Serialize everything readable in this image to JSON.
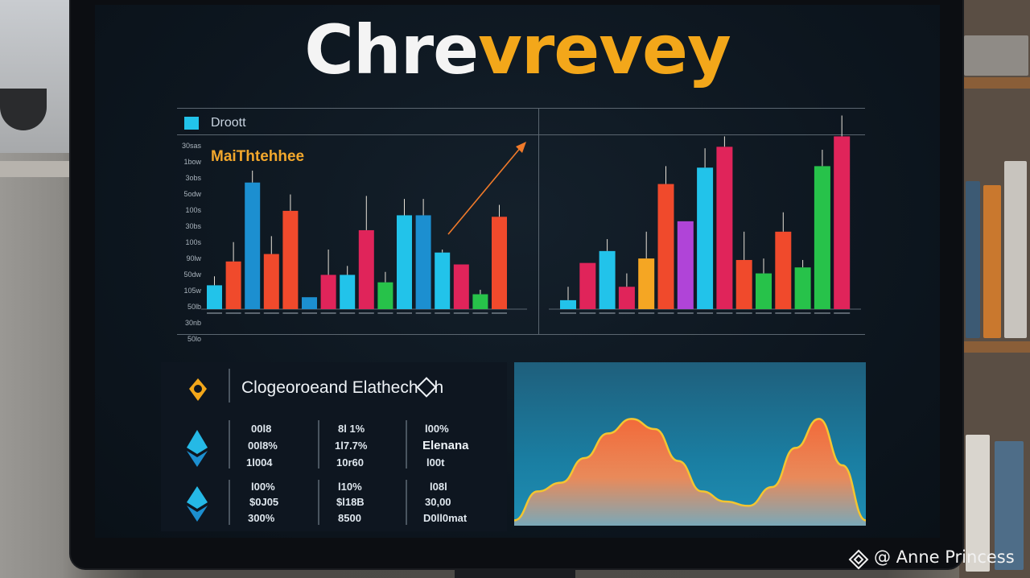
{
  "app": {
    "title_part1": "Chre",
    "title_part2": "vrevey"
  },
  "chart_panel": {
    "legend_label": "Droott",
    "subtitle": "MaiThtehhee",
    "y_ticks": [
      "30sas",
      "1bow",
      "3obs",
      "5odw",
      "100s",
      "30bs",
      "100s",
      "90lw",
      "50dw",
      "105w",
      "50lb",
      "30nb",
      "50lo"
    ]
  },
  "stats_panel": {
    "title": "Clogeoroeand Elathech",
    "title_tail": "h",
    "row1": {
      "col1": [
        "00l8",
        "00l8%",
        "1l004"
      ],
      "col2": [
        "8l 1%",
        "1l7.7%",
        "10r60"
      ],
      "col3": [
        "l00%",
        "Elenana",
        "l00t"
      ]
    },
    "row2": {
      "col1": [
        "l00%",
        "$0J05",
        "300%"
      ],
      "col2": [
        "l10%",
        "$l18B",
        "8500"
      ],
      "col3": [
        "l08l",
        "30,00",
        "D0ll0mat"
      ]
    }
  },
  "watermark": "@ Anne Princess",
  "colors": {
    "title_white": "#f4f4f4",
    "title_orange": "#f3a71a",
    "cyan": "#22c3ea",
    "blue": "#1c8fd0",
    "orange_red": "#f04a2c",
    "crimson": "#e0245a",
    "green": "#27c24a",
    "purple": "#b044d8",
    "amber": "#f5a623",
    "arrow": "#f07a2a"
  },
  "icons": [
    "pin-location-icon",
    "ethereum-diamond-icon",
    "binance-diamond-icon"
  ],
  "chart_data": [
    {
      "type": "bar",
      "series": [
        {
          "values": [
            1.6,
            3.2,
            8.5,
            3.7,
            6.6,
            0.8,
            2.3,
            2.3,
            5.3,
            1.8,
            6.3,
            6.3,
            3.8,
            3.0,
            1.0,
            6.2
          ],
          "whisker_tops": [
            2.2,
            4.5,
            9.3,
            4.9,
            7.7,
            0.8,
            4.0,
            2.9,
            7.6,
            2.5,
            7.4,
            7.4,
            4.0,
            3.0,
            1.3,
            7.0
          ],
          "colors": [
            "cyan",
            "orange_red",
            "blue",
            "orange_red",
            "orange_red",
            "blue",
            "crimson",
            "cyan",
            "crimson",
            "green",
            "cyan",
            "blue",
            "cyan",
            "crimson",
            "green",
            "orange_red"
          ]
        }
      ]
    },
    {
      "type": "bar",
      "series": [
        {
          "values": [
            0.6,
            3.1,
            3.9,
            1.5,
            3.4,
            8.4,
            5.9,
            9.5,
            10.9,
            3.3,
            2.4,
            5.2,
            2.8,
            9.6,
            11.6
          ],
          "whisker_tops": [
            1.5,
            3.1,
            4.7,
            2.4,
            5.2,
            9.6,
            5.9,
            10.8,
            11.6,
            5.2,
            3.4,
            6.5,
            3.3,
            10.7,
            13.0
          ],
          "colors": [
            "cyan",
            "crimson",
            "cyan",
            "crimson",
            "amber",
            "orange_red",
            "purple",
            "cyan",
            "crimson",
            "orange_red",
            "green",
            "orange_red",
            "green",
            "green",
            "crimson"
          ]
        }
      ]
    },
    {
      "type": "area",
      "series": [
        {
          "values": [
            0.02,
            0.22,
            0.28,
            0.45,
            0.62,
            0.72,
            0.65,
            0.43,
            0.22,
            0.15,
            0.12,
            0.25,
            0.52,
            0.72,
            0.4,
            0.02
          ]
        }
      ]
    }
  ]
}
